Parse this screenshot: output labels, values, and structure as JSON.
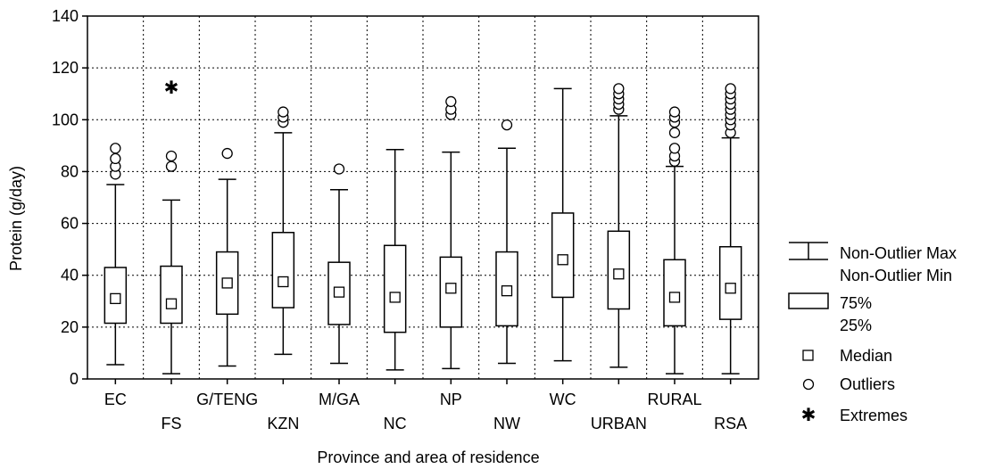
{
  "chart_data": {
    "type": "boxplot",
    "xlabel": "Province and area of residence",
    "ylabel": "Protein (g/day)",
    "ylim": [
      0,
      140
    ],
    "yticks": [
      0,
      20,
      40,
      60,
      80,
      100,
      120,
      140
    ],
    "grid": true,
    "legend_position": "right",
    "categories": [
      "EC",
      "FS",
      "G/TENG",
      "KZN",
      "M/GA",
      "NC",
      "NP",
      "NW",
      "WC",
      "URBAN",
      "RURAL",
      "RSA"
    ],
    "boxes": [
      {
        "category": "EC",
        "min": 5.5,
        "q1": 21.5,
        "median": 31,
        "q3": 43,
        "max": 75,
        "outliers": [
          79,
          82,
          85,
          89
        ],
        "extremes": []
      },
      {
        "category": "FS",
        "min": 2,
        "q1": 21.5,
        "median": 29,
        "q3": 43.5,
        "max": 69,
        "outliers": [
          82,
          86
        ],
        "extremes": [
          112.5
        ]
      },
      {
        "category": "G/TENG",
        "min": 5,
        "q1": 25,
        "median": 37,
        "q3": 49,
        "max": 77,
        "outliers": [
          87
        ],
        "extremes": []
      },
      {
        "category": "KZN",
        "min": 9.5,
        "q1": 27.5,
        "median": 37.5,
        "q3": 56.5,
        "max": 95,
        "outliers": [
          99,
          101,
          103
        ],
        "extremes": []
      },
      {
        "category": "M/GA",
        "min": 6,
        "q1": 21,
        "median": 33.5,
        "q3": 45,
        "max": 73,
        "outliers": [
          81
        ],
        "extremes": []
      },
      {
        "category": "NC",
        "min": 3.5,
        "q1": 18,
        "median": 31.5,
        "q3": 51.5,
        "max": 88.5,
        "outliers": [],
        "extremes": []
      },
      {
        "category": "NP",
        "min": 4,
        "q1": 20,
        "median": 35,
        "q3": 47,
        "max": 87.5,
        "outliers": [
          102,
          104,
          107
        ],
        "extremes": []
      },
      {
        "category": "NW",
        "min": 6,
        "q1": 20.5,
        "median": 34,
        "q3": 49,
        "max": 89,
        "outliers": [
          98
        ],
        "extremes": []
      },
      {
        "category": "WC",
        "min": 7,
        "q1": 31.5,
        "median": 46,
        "q3": 64,
        "max": 112,
        "outliers": [],
        "extremes": []
      },
      {
        "category": "URBAN",
        "min": 4.5,
        "q1": 27,
        "median": 40.5,
        "q3": 57,
        "max": 101.5,
        "outliers": [
          104,
          106,
          108,
          110,
          112
        ],
        "extremes": []
      },
      {
        "category": "RURAL",
        "min": 2,
        "q1": 20.5,
        "median": 31.5,
        "q3": 46,
        "max": 82,
        "outliers": [
          84,
          86,
          89,
          95,
          99,
          101,
          103
        ],
        "extremes": []
      },
      {
        "category": "RSA",
        "min": 2,
        "q1": 23,
        "median": 35,
        "q3": 51,
        "max": 93,
        "outliers": [
          95,
          98,
          100,
          102,
          104,
          106,
          108,
          110,
          112
        ],
        "extremes": []
      }
    ],
    "legend": {
      "whisker_label_1": "Non-Outlier Max",
      "whisker_label_2": "Non-Outlier Min",
      "box_label_1": "75%",
      "box_label_2": "25%",
      "median_label": "Median",
      "outliers_label": "Outliers",
      "extremes_label": "Extremes"
    }
  }
}
